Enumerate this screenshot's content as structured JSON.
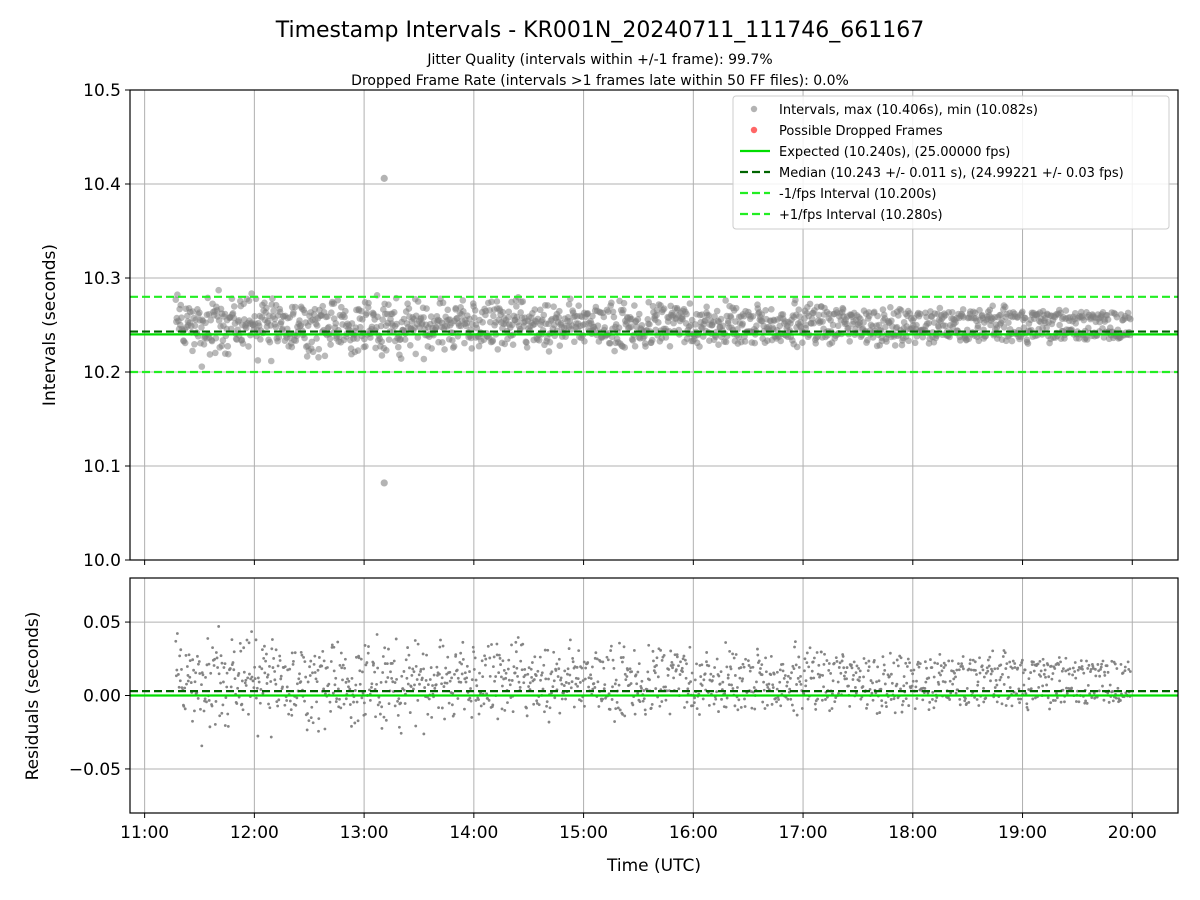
{
  "figure": {
    "title": "Timestamp Intervals - KR001N_20240711_111746_661167",
    "subtitle_1": "Jitter Quality (intervals within +/-1 frame): 99.7%",
    "subtitle_2": "Dropped Frame Rate (intervals >1 frames late within 50 FF files): 0.0%",
    "xlabel": "Time (UTC)"
  },
  "colors": {
    "points": "#808080",
    "dropped": "#ff0000",
    "expected": "#00dd00",
    "median": "#006400",
    "fps_band": "#22ee22",
    "grid": "#b0b0b0"
  },
  "chart_data": [
    {
      "type": "scatter",
      "ylabel": "Intervals (seconds)",
      "xlim": [
        "10:52",
        "20:25"
      ],
      "ylim": [
        10.0,
        10.5
      ],
      "x_ticks": [
        "11:00",
        "12:00",
        "13:00",
        "14:00",
        "15:00",
        "16:00",
        "17:00",
        "18:00",
        "19:00",
        "20:00"
      ],
      "y_ticks": [
        "10.0",
        "10.1",
        "10.2",
        "10.3",
        "10.4",
        "10.5"
      ],
      "grid": true,
      "legend_position": "top-right",
      "legend": [
        {
          "label": "Intervals, max (10.406s), min (10.082s)",
          "style": "point-grey"
        },
        {
          "label": "Possible Dropped Frames",
          "style": "point-red"
        },
        {
          "label": "Expected (10.240s), (25.00000 fps)",
          "style": "solid-green"
        },
        {
          "label": "Median (10.243 +/- 0.011 s), (24.99221 +/- 0.03 fps)",
          "style": "dashed-darkgreen"
        },
        {
          "label": "-1/fps Interval (10.200s)",
          "style": "dashed-lime"
        },
        {
          "label": "+1/fps Interval (10.280s)",
          "style": "dashed-lime"
        }
      ],
      "reference_lines": [
        {
          "name": "Expected",
          "y": 10.24
        },
        {
          "name": "Median",
          "y": 10.243
        },
        {
          "name": "-1/fps Interval",
          "y": 10.2
        },
        {
          "name": "+1/fps Interval",
          "y": 10.28
        }
      ],
      "series_range": {
        "start": "11:17",
        "end": "19:59"
      },
      "value_clusters": [
        10.241,
        10.259
      ],
      "outliers": [
        {
          "x": "13:11",
          "y": 10.406
        },
        {
          "x": "13:11",
          "y": 10.082
        }
      ],
      "dropped_frames": []
    },
    {
      "type": "scatter",
      "ylabel": "Residuals (seconds)",
      "xlim": [
        "10:52",
        "20:25"
      ],
      "ylim": [
        -0.08,
        0.08
      ],
      "x_ticks": [
        "11:00",
        "12:00",
        "13:00",
        "14:00",
        "15:00",
        "16:00",
        "17:00",
        "18:00",
        "19:00",
        "20:00"
      ],
      "y_ticks": [
        "0.05",
        "0.00",
        "−0.05"
      ],
      "y_tick_values": [
        0.05,
        0.0,
        -0.05
      ],
      "grid": true,
      "reference_lines": [
        {
          "name": "Expected",
          "y": 0.0
        },
        {
          "name": "Median",
          "y": 0.003
        }
      ],
      "series_range": {
        "start": "11:17",
        "end": "19:59"
      },
      "value_clusters": [
        0.001,
        0.019
      ]
    }
  ]
}
